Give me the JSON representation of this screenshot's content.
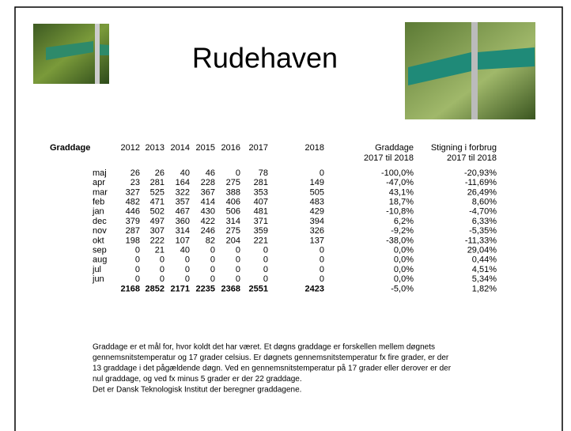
{
  "header": {
    "title": "Rudehaven"
  },
  "table": {
    "columns": [
      [
        "Graddage"
      ],
      [
        "2012"
      ],
      [
        "2013"
      ],
      [
        "2014"
      ],
      [
        "2015"
      ],
      [
        "2016"
      ],
      [
        "2017"
      ],
      [
        "2018"
      ],
      [
        "Graddage",
        "2017 til 2018"
      ],
      [
        "Stigning i forbrug",
        "2017 til 2018"
      ]
    ],
    "rows": [
      [
        "maj",
        26,
        26,
        40,
        46,
        0,
        78,
        0,
        "-100,0%",
        "-20,93%"
      ],
      [
        "apr",
        23,
        281,
        164,
        228,
        275,
        281,
        149,
        "-47,0%",
        "-11,69%"
      ],
      [
        "mar",
        327,
        525,
        322,
        367,
        388,
        353,
        505,
        "43,1%",
        "26,49%"
      ],
      [
        "feb",
        482,
        471,
        357,
        414,
        406,
        407,
        483,
        "18,7%",
        "8,60%"
      ],
      [
        "jan",
        446,
        502,
        467,
        430,
        506,
        481,
        429,
        "-10,8%",
        "-4,70%"
      ],
      [
        "dec",
        379,
        497,
        360,
        422,
        314,
        371,
        394,
        "6,2%",
        "6,33%"
      ],
      [
        "nov",
        287,
        307,
        314,
        246,
        275,
        359,
        326,
        "-9,2%",
        "-5,35%"
      ],
      [
        "okt",
        198,
        222,
        107,
        82,
        204,
        221,
        137,
        "-38,0%",
        "-11,33%"
      ],
      [
        "sep",
        0,
        21,
        40,
        0,
        0,
        0,
        0,
        "0,0%",
        "29,04%"
      ],
      [
        "aug",
        0,
        0,
        0,
        0,
        0,
        0,
        0,
        "0,0%",
        "0,44%"
      ],
      [
        "jul",
        0,
        0,
        0,
        0,
        0,
        0,
        0,
        "0,0%",
        "4,51%"
      ],
      [
        "jun",
        0,
        0,
        0,
        0,
        0,
        0,
        0,
        "0,0%",
        "5,34%"
      ]
    ],
    "totals": [
      2168,
      2852,
      2171,
      2235,
      2368,
      2551,
      2423,
      "-5,0%",
      "1,82%"
    ]
  },
  "note": {
    "lines": [
      "Graddage er et mål for, hvor koldt det har været. Et døgns graddage er forskellen mellem døgnets",
      "gennemsnitstemperatur og 17 grader celsius. Er døgnets gennemsnitstemperatur fx fire grader, er der",
      "13 graddage i det pågældende døgn. Ved en gennemsnitstemperatur på 17 grader eller derover er der",
      "nul graddage, og ved fx minus 5 grader er der 22 graddage.",
      "Det er Dansk Teknologisk Institut der beregner graddagene."
    ]
  }
}
